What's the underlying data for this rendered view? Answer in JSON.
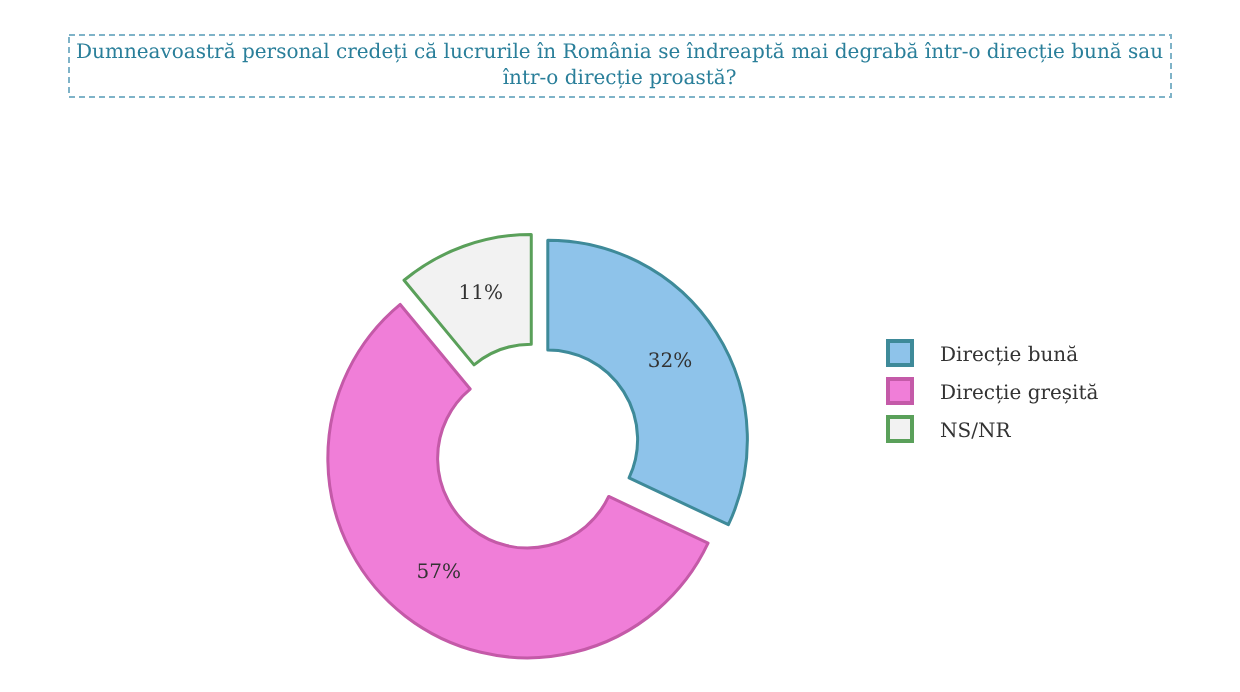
{
  "chart_data": {
    "type": "donut",
    "title": "Dumneavoastră personal credeți că lucrurile în România se îndreaptă mai degrabă într-o direcție bună sau într-o direcție proastă?",
    "categories": [
      "Direcție bună",
      "Direcție greșită",
      "NS/NR"
    ],
    "values": [
      32,
      57,
      11
    ],
    "value_labels": [
      "32%",
      "57%",
      "11%"
    ],
    "colors": [
      "#8ec3ea",
      "#f07ed8",
      "#f2f2f2"
    ],
    "legend": "right"
  }
}
